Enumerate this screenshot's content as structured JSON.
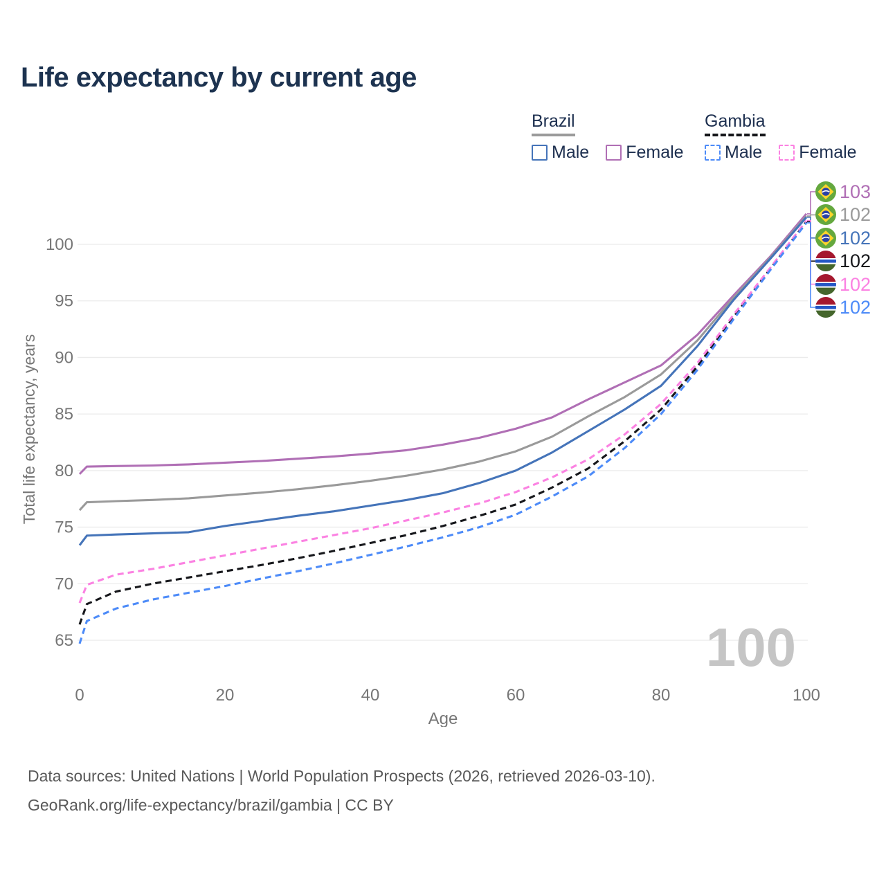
{
  "title": "Life expectancy by current age",
  "legend": {
    "brazil": {
      "label": "Brazil",
      "male": "Male",
      "female": "Female",
      "male_color": "#4574b9",
      "female_color": "#b06fb5"
    },
    "gambia": {
      "label": "Gambia",
      "male": "Male",
      "female": "Female",
      "male_color": "#4d8bf8",
      "female_color": "#fb82e2"
    }
  },
  "footer": {
    "line1": "Data sources: United Nations | World Population Prospects (2026, retrieved 2026-03-10).",
    "line2": "GeoRank.org/life-expectancy/brazil/gambia | CC BY"
  },
  "chart_data": {
    "type": "line",
    "title": "Life expectancy by current age",
    "xlabel": "Age",
    "ylabel": "Total life expectancy, years",
    "xticks": [
      0,
      20,
      40,
      60,
      80,
      100
    ],
    "yticks": [
      65,
      70,
      75,
      80,
      85,
      90,
      95,
      100
    ],
    "xlim": [
      0,
      100
    ],
    "ylim": [
      63.5,
      103.5
    ],
    "grid": "horizontal",
    "legend_position": "top-right",
    "age_watermark": "100",
    "x": [
      0,
      1,
      5,
      10,
      15,
      20,
      25,
      30,
      35,
      40,
      45,
      50,
      55,
      60,
      65,
      70,
      75,
      80,
      85,
      90,
      95,
      100
    ],
    "series": [
      {
        "name": "Brazil Female",
        "country": "Brazil",
        "sex": "Female",
        "flag": "brazil",
        "color": "#b06fb5",
        "dash": "solid",
        "end_label": "103",
        "values": [
          79.7,
          80.35,
          80.4,
          80.45,
          80.55,
          80.7,
          80.85,
          81.05,
          81.25,
          81.5,
          81.8,
          82.3,
          82.9,
          83.7,
          84.7,
          86.3,
          87.8,
          89.3,
          92.0,
          95.5,
          98.9,
          102.7
        ]
      },
      {
        "name": "Brazil Both sexes",
        "country": "Brazil",
        "sex": "Both",
        "flag": "brazil",
        "color": "#9a9a9a",
        "dash": "solid",
        "end_label": "102",
        "values": [
          76.5,
          77.2,
          77.3,
          77.4,
          77.55,
          77.8,
          78.05,
          78.35,
          78.7,
          79.1,
          79.55,
          80.1,
          80.8,
          81.7,
          83.0,
          84.8,
          86.5,
          88.5,
          91.5,
          95.3,
          98.8,
          102.5
        ]
      },
      {
        "name": "Brazil Male",
        "country": "Brazil",
        "sex": "Male",
        "flag": "brazil",
        "color": "#4574b9",
        "dash": "solid",
        "end_label": "102",
        "values": [
          73.4,
          74.25,
          74.35,
          74.45,
          74.55,
          75.1,
          75.55,
          76.0,
          76.4,
          76.9,
          77.4,
          78.0,
          78.9,
          80.0,
          81.6,
          83.5,
          85.4,
          87.5,
          91.0,
          95.1,
          98.7,
          102.4
        ]
      },
      {
        "name": "Gambia Both sexes",
        "country": "Gambia",
        "sex": "Both",
        "flag": "gambia",
        "color": "#16171b",
        "dash": "dashed",
        "end_label": "102",
        "values": [
          66.4,
          68.2,
          69.3,
          70.0,
          70.55,
          71.1,
          71.65,
          72.25,
          72.9,
          73.6,
          74.3,
          75.1,
          76.0,
          77.0,
          78.5,
          80.2,
          82.6,
          85.4,
          89.2,
          93.6,
          97.8,
          102.0
        ]
      },
      {
        "name": "Gambia Female",
        "country": "Gambia",
        "sex": "Female",
        "flag": "gambia",
        "color": "#fb82e2",
        "dash": "dashed",
        "end_label": "102",
        "values": [
          68.3,
          69.9,
          70.8,
          71.3,
          71.9,
          72.5,
          73.1,
          73.7,
          74.3,
          74.9,
          75.6,
          76.3,
          77.1,
          78.1,
          79.4,
          81.0,
          83.2,
          85.9,
          89.5,
          93.8,
          97.9,
          102.1
        ]
      },
      {
        "name": "Gambia Male",
        "country": "Gambia",
        "sex": "Male",
        "flag": "gambia",
        "color": "#4d8bf8",
        "dash": "dashed",
        "end_label": "102",
        "values": [
          64.7,
          66.7,
          67.8,
          68.6,
          69.2,
          69.8,
          70.45,
          71.1,
          71.8,
          72.55,
          73.3,
          74.1,
          75.0,
          76.1,
          77.7,
          79.5,
          82.0,
          85.0,
          88.9,
          93.4,
          97.7,
          101.9
        ]
      }
    ]
  }
}
